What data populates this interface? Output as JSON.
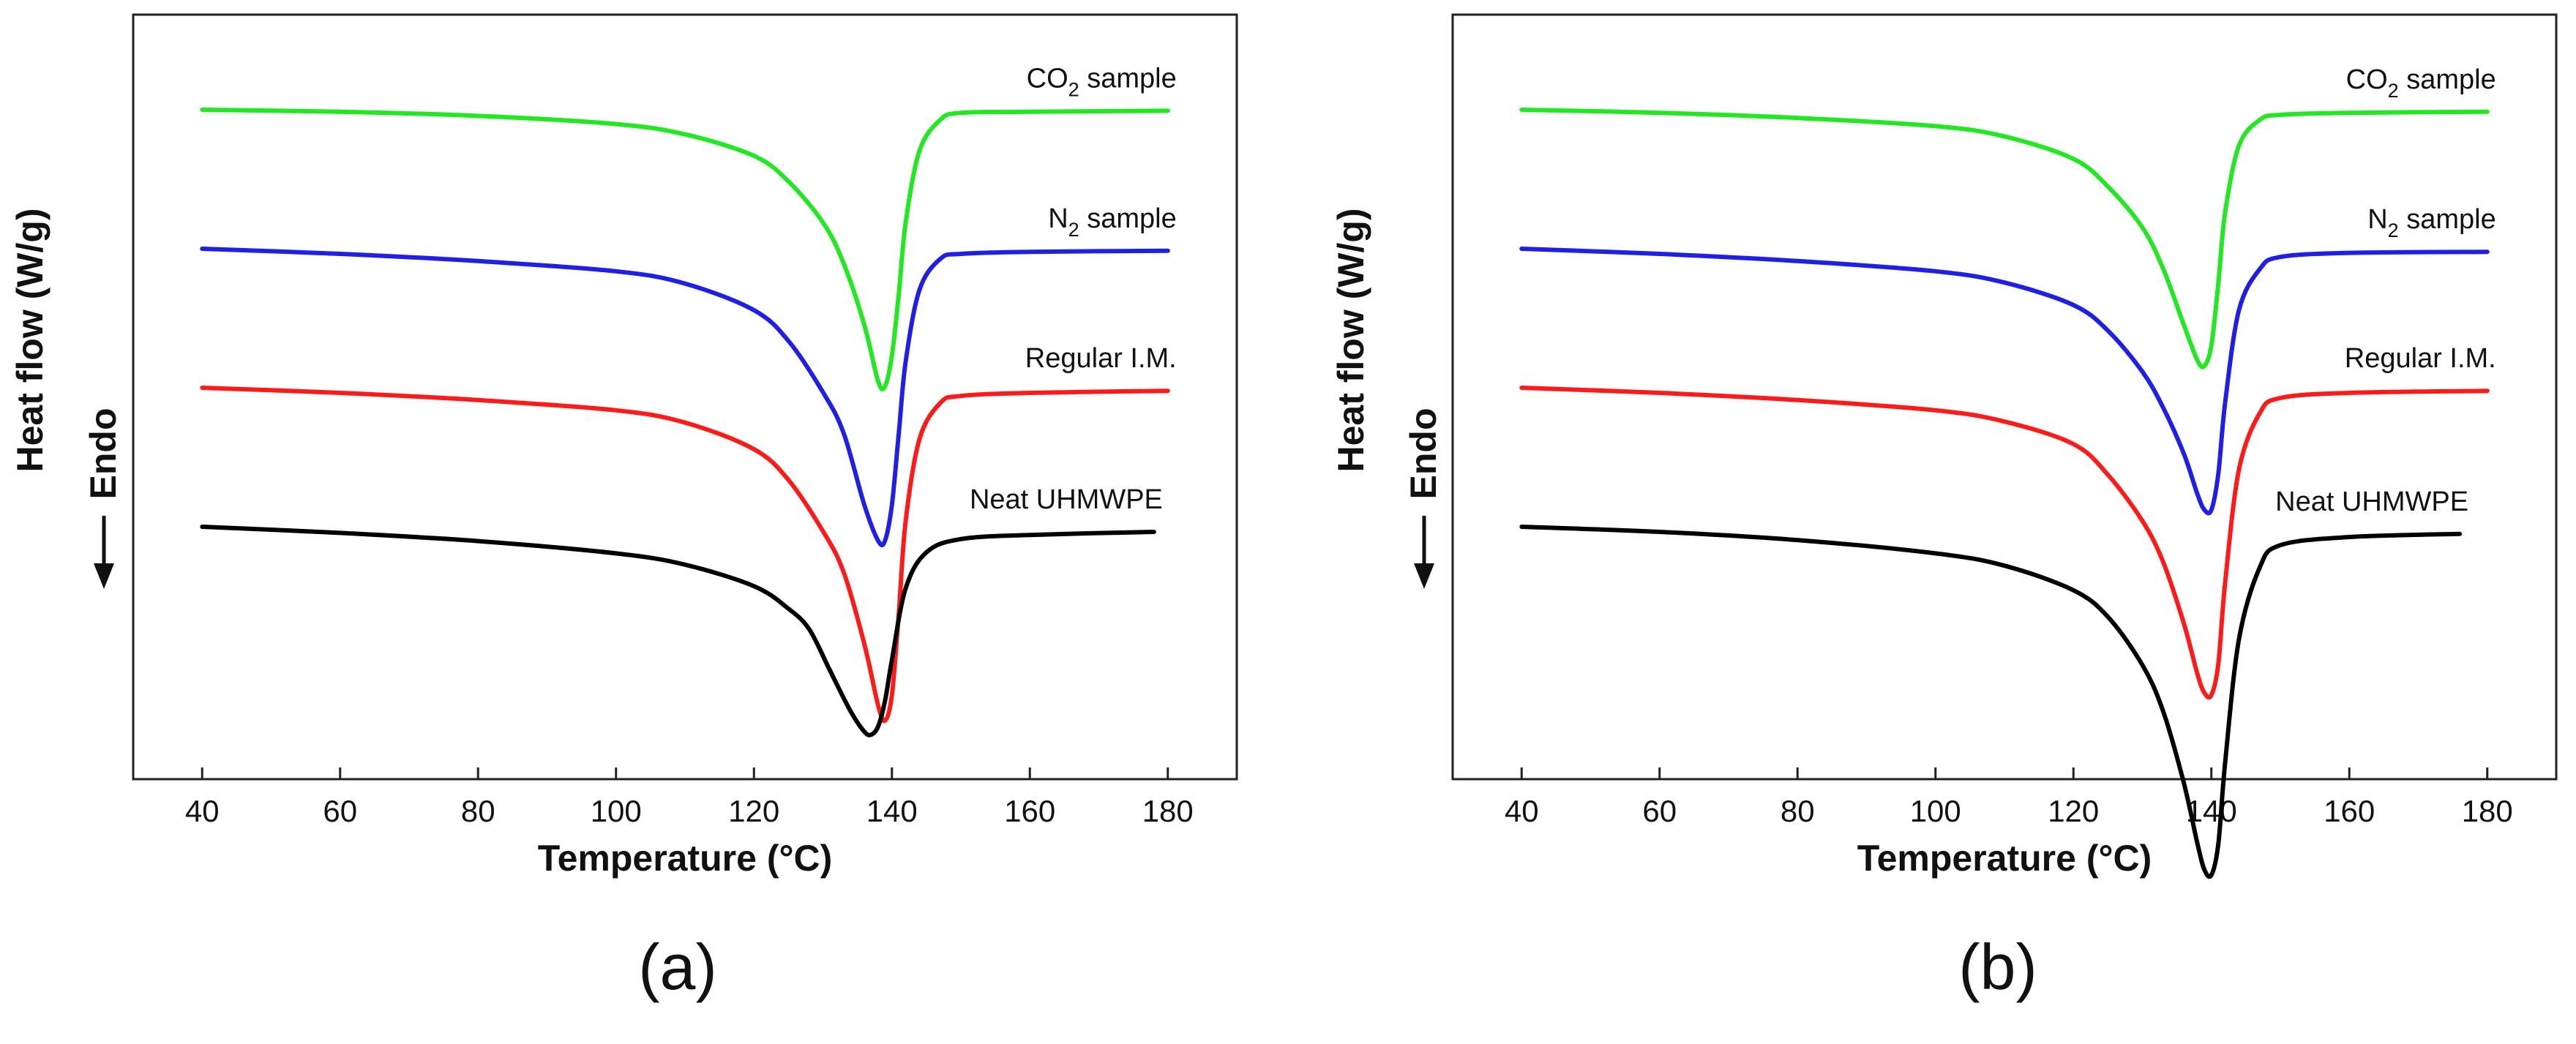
{
  "chart_data": [
    {
      "type": "line",
      "panel_label": "(a)",
      "xlabel": "Temperature (°C)",
      "ylabel": "Heat flow (W/g)",
      "direction_label": "Endo",
      "xlim": [
        30,
        190
      ],
      "xticks": [
        40,
        60,
        80,
        100,
        120,
        140,
        160,
        180
      ],
      "grid": false,
      "series": [
        {
          "name": "CO2 sample",
          "label_main": "CO",
          "label_sub": "2",
          "label_rest": " sample",
          "color": "#22e822",
          "x": [
            40,
            60,
            80,
            100,
            110,
            120,
            125,
            130,
            133,
            136,
            138,
            139,
            140,
            141,
            142,
            144,
            147,
            150,
            160,
            180
          ],
          "y": [
            0,
            -0.2,
            -0.6,
            -1.4,
            -2.4,
            -4.5,
            -7,
            -11,
            -15,
            -21,
            -26.5,
            -27,
            -24,
            -18,
            -11,
            -4,
            -1,
            -0.3,
            -0.2,
            -0.1
          ]
        },
        {
          "name": "N2 sample",
          "label_main": "N",
          "label_sub": "2",
          "label_rest": " sample",
          "color": "#1f1fe8",
          "x": [
            40,
            60,
            80,
            100,
            110,
            120,
            125,
            130,
            133,
            136,
            138,
            139,
            140,
            141,
            142,
            144,
            147,
            150,
            160,
            180
          ],
          "y": [
            0,
            -0.5,
            -1.2,
            -2.2,
            -3.4,
            -6,
            -9,
            -14,
            -18,
            -25,
            -28.5,
            -28.5,
            -25,
            -18,
            -11,
            -4,
            -1,
            -0.5,
            -0.3,
            -0.2
          ]
        },
        {
          "name": "Regular I.M.",
          "label_main": "Regular I.M.",
          "label_sub": "",
          "label_rest": "",
          "color": "#ff1a1a",
          "x": [
            40,
            60,
            80,
            100,
            110,
            120,
            125,
            130,
            133,
            136,
            138,
            139,
            140,
            141,
            142,
            144,
            147,
            150,
            160,
            180
          ],
          "y": [
            0,
            -0.5,
            -1.2,
            -2.2,
            -3.4,
            -6,
            -9,
            -14,
            -18,
            -25,
            -31,
            -32.5,
            -30,
            -22,
            -13,
            -5,
            -1.5,
            -0.8,
            -0.5,
            -0.3
          ]
        },
        {
          "name": "Neat UHMWPE",
          "label_main": "Neat UHMWPE",
          "label_sub": "",
          "label_rest": "",
          "color": "#000000",
          "x": [
            40,
            60,
            80,
            100,
            110,
            120,
            125,
            128,
            131,
            134,
            136,
            137,
            138,
            139,
            140,
            142,
            145,
            150,
            160,
            178
          ],
          "y": [
            0,
            -0.6,
            -1.4,
            -2.6,
            -3.7,
            -5.8,
            -8,
            -10,
            -14,
            -18,
            -20,
            -20.3,
            -19.5,
            -17,
            -13,
            -6,
            -2.5,
            -1.2,
            -0.8,
            -0.5
          ]
        }
      ]
    },
    {
      "type": "line",
      "panel_label": "(b)",
      "xlabel": "Temperature (°C)",
      "ylabel": "Heat flow (W/g)",
      "direction_label": "Endo",
      "xlim": [
        30,
        190
      ],
      "xticks": [
        40,
        60,
        80,
        100,
        120,
        140,
        160,
        180
      ],
      "grid": false,
      "series": [
        {
          "name": "CO2 sample",
          "label_main": "CO",
          "label_sub": "2",
          "label_rest": " sample",
          "color": "#22e822",
          "x": [
            40,
            60,
            80,
            100,
            110,
            120,
            125,
            130,
            133,
            136,
            138,
            139,
            140,
            141,
            142,
            144,
            147,
            150,
            160,
            180
          ],
          "y": [
            0,
            -0.3,
            -0.8,
            -1.6,
            -2.6,
            -4.8,
            -7.5,
            -11.5,
            -15.5,
            -21,
            -24.5,
            -25,
            -23,
            -17,
            -10,
            -3.5,
            -1,
            -0.5,
            -0.3,
            -0.2
          ]
        },
        {
          "name": "N2 sample",
          "label_main": "N",
          "label_sub": "2",
          "label_rest": " sample",
          "color": "#1f1fe8",
          "x": [
            40,
            60,
            80,
            100,
            110,
            120,
            125,
            130,
            133,
            136,
            138,
            139,
            140,
            141,
            142,
            144,
            147,
            150,
            160,
            180
          ],
          "y": [
            0,
            -0.5,
            -1.2,
            -2.2,
            -3.3,
            -5.5,
            -8,
            -12,
            -15.5,
            -20,
            -24,
            -25.5,
            -25.5,
            -22,
            -15,
            -6,
            -2,
            -0.8,
            -0.4,
            -0.3
          ]
        },
        {
          "name": "Regular I.M.",
          "label_main": "Regular I.M.",
          "label_sub": "",
          "label_rest": "",
          "color": "#ff1a1a",
          "x": [
            40,
            60,
            80,
            100,
            110,
            120,
            125,
            130,
            133,
            136,
            138,
            139,
            140,
            141,
            142,
            144,
            147,
            150,
            160,
            180
          ],
          "y": [
            0,
            -0.5,
            -1.2,
            -2.2,
            -3.3,
            -5.5,
            -8.5,
            -13,
            -17,
            -23,
            -28,
            -29.8,
            -30,
            -27,
            -19,
            -8,
            -2.5,
            -1,
            -0.5,
            -0.3
          ]
        },
        {
          "name": "Neat UHMWPE",
          "label_main": "Neat UHMWPE",
          "label_sub": "",
          "label_rest": "",
          "color": "#000000",
          "x": [
            40,
            60,
            80,
            100,
            110,
            120,
            125,
            130,
            133,
            136,
            138,
            139,
            140,
            141,
            142,
            144,
            147,
            150,
            160,
            176
          ],
          "y": [
            0,
            -0.5,
            -1.3,
            -2.6,
            -3.8,
            -6.2,
            -8.8,
            -13.5,
            -18,
            -25,
            -31,
            -33.5,
            -34,
            -31,
            -23,
            -11,
            -4,
            -1.8,
            -1,
            -0.7
          ]
        }
      ]
    }
  ]
}
